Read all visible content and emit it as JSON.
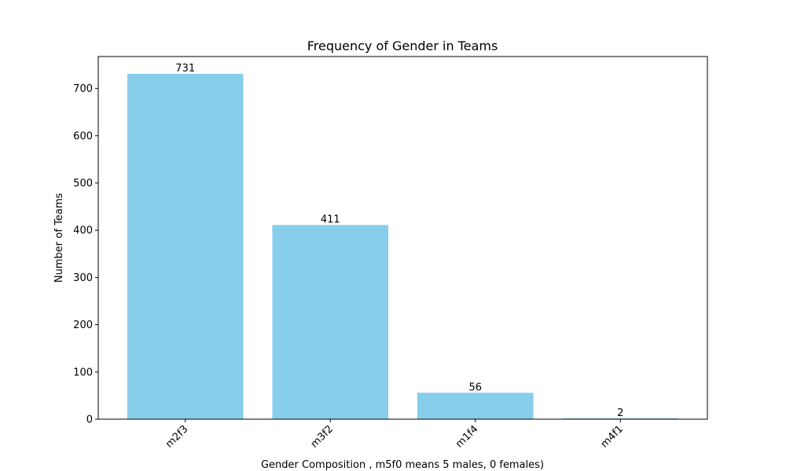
{
  "chart_data": {
    "type": "bar",
    "title": "Frequency of Gender in Teams",
    "xlabel": "Gender Composition , m5f0 means 5 males, 0 females)",
    "ylabel": "Number of Teams",
    "categories": [
      "m2f3",
      "m3f2",
      "m1f4",
      "m4f1"
    ],
    "values": [
      731,
      411,
      56,
      2
    ],
    "data_labels": [
      "731",
      "411",
      "56",
      "2"
    ],
    "yticks": [
      0,
      100,
      200,
      300,
      400,
      500,
      600,
      700
    ],
    "ylim": [
      0,
      767.55
    ],
    "bar_color": "#87ceeb",
    "grid": false,
    "legend": "none",
    "x_tick_rotation": 45
  }
}
